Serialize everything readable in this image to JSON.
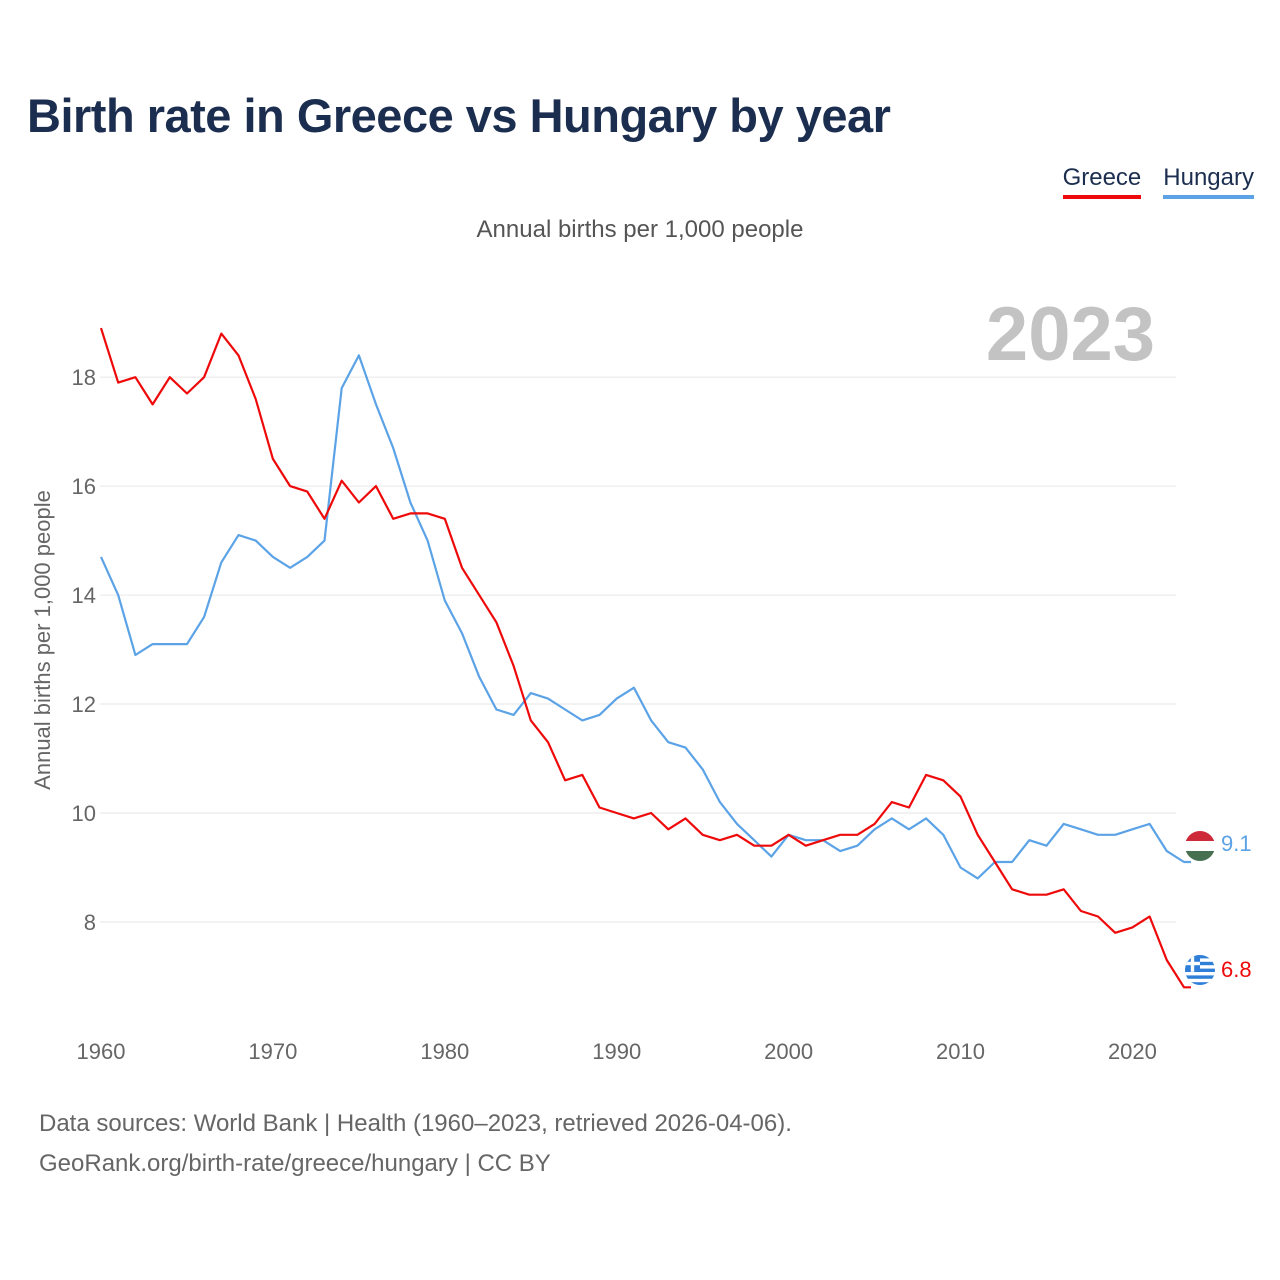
{
  "title": "Birth rate in Greece vs Hungary by year",
  "subtitle": "Annual births per 1,000 people",
  "year_watermark": "2023",
  "legend": [
    {
      "name": "Greece",
      "color": "#ee0a0a"
    },
    {
      "name": "Hungary",
      "color": "#5ba3e6"
    }
  ],
  "footer": {
    "line1": "Data sources: World Bank | Health (1960–2023, retrieved 2026-04-06).",
    "line2": "GeoRank.org/birth-rate/greece/hungary | CC BY"
  },
  "chart_data": {
    "type": "line",
    "title": "Birth rate in Greece vs Hungary by year",
    "xlabel": "",
    "ylabel": "Annual births per 1,000 people",
    "xlim": [
      1960,
      2023
    ],
    "ylim": [
      6.2,
      19.6
    ],
    "x_ticks": [
      1960,
      1970,
      1980,
      1990,
      2000,
      2010,
      2020
    ],
    "y_ticks": [
      8,
      10,
      12,
      14,
      16,
      18
    ],
    "grid": true,
    "legend_position": "top-right",
    "x": [
      1960,
      1961,
      1962,
      1963,
      1964,
      1965,
      1966,
      1967,
      1968,
      1969,
      1970,
      1971,
      1972,
      1973,
      1974,
      1975,
      1976,
      1977,
      1978,
      1979,
      1980,
      1981,
      1982,
      1983,
      1984,
      1985,
      1986,
      1987,
      1988,
      1989,
      1990,
      1991,
      1992,
      1993,
      1994,
      1995,
      1996,
      1997,
      1998,
      1999,
      2000,
      2001,
      2002,
      2003,
      2004,
      2005,
      2006,
      2007,
      2008,
      2009,
      2010,
      2011,
      2012,
      2013,
      2014,
      2015,
      2016,
      2017,
      2018,
      2019,
      2020,
      2021,
      2022,
      2023
    ],
    "series": [
      {
        "name": "Greece",
        "color": "#ee0a0a",
        "end_label": "6.8",
        "values": [
          18.9,
          17.9,
          18.0,
          17.5,
          18.0,
          17.7,
          18.0,
          18.8,
          18.4,
          17.6,
          16.5,
          16.0,
          15.9,
          15.4,
          16.1,
          15.7,
          16.0,
          15.4,
          15.5,
          15.5,
          15.4,
          14.5,
          14.0,
          13.5,
          12.7,
          11.7,
          11.3,
          10.6,
          10.7,
          10.1,
          10.0,
          9.9,
          10.0,
          9.7,
          9.9,
          9.6,
          9.5,
          9.6,
          9.4,
          9.4,
          9.6,
          9.4,
          9.5,
          9.6,
          9.6,
          9.8,
          10.2,
          10.1,
          10.7,
          10.6,
          10.3,
          9.6,
          9.1,
          8.6,
          8.5,
          8.5,
          8.6,
          8.2,
          8.1,
          7.8,
          7.9,
          8.1,
          7.3,
          6.8
        ]
      },
      {
        "name": "Hungary",
        "color": "#5ba3e6",
        "end_label": "9.1",
        "values": [
          14.7,
          14.0,
          12.9,
          13.1,
          13.1,
          13.1,
          13.6,
          14.6,
          15.1,
          15.0,
          14.7,
          14.5,
          14.7,
          15.0,
          17.8,
          18.4,
          17.5,
          16.7,
          15.7,
          15.0,
          13.9,
          13.3,
          12.5,
          11.9,
          11.8,
          12.2,
          12.1,
          11.9,
          11.7,
          11.8,
          12.1,
          12.3,
          11.7,
          11.3,
          11.2,
          10.8,
          10.2,
          9.8,
          9.5,
          9.2,
          9.6,
          9.5,
          9.5,
          9.3,
          9.4,
          9.7,
          9.9,
          9.7,
          9.9,
          9.6,
          9.0,
          8.8,
          9.1,
          9.1,
          9.5,
          9.4,
          9.8,
          9.7,
          9.6,
          9.6,
          9.7,
          9.8,
          9.3,
          9.1
        ]
      }
    ]
  }
}
